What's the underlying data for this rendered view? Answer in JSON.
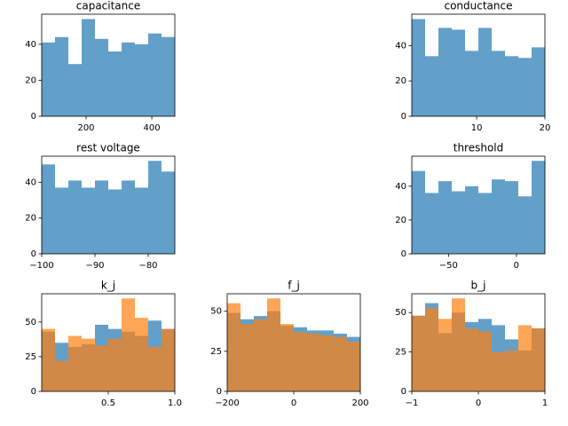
{
  "chart_data": [
    {
      "type": "histogram",
      "title": "capacitance",
      "bins": [
        65,
        105.5,
        146,
        186.5,
        227,
        267.5,
        308,
        348.5,
        389,
        429.5,
        470
      ],
      "values": [
        41,
        44,
        29,
        54,
        43,
        36,
        41,
        40,
        46,
        44
      ],
      "color": "#1f77b4",
      "alpha": 0.7,
      "xlim": [
        65,
        470
      ],
      "xticks": [
        200,
        400
      ],
      "ylim": [
        0,
        56.7
      ],
      "yticks": [
        0,
        20,
        40
      ]
    },
    {
      "type": "histogram",
      "title": "conductance",
      "bins": [
        0.5,
        2.45,
        4.4,
        6.35,
        8.3,
        10.25,
        12.2,
        14.15,
        16.1,
        18.05,
        20
      ],
      "values": [
        55,
        34,
        50,
        49,
        37,
        50,
        37,
        34,
        33,
        39
      ],
      "color": "#1f77b4",
      "alpha": 0.7,
      "xlim": [
        0.5,
        20
      ],
      "xticks": [
        10,
        20
      ],
      "ylim": [
        0,
        57.75
      ],
      "yticks": [
        0,
        20,
        40
      ]
    },
    {
      "type": "histogram",
      "title": "rest voltage",
      "bins": [
        -100,
        -97.5,
        -95,
        -92.5,
        -90,
        -87.5,
        -85,
        -82.5,
        -80,
        -77.5,
        -75
      ],
      "values": [
        50,
        37,
        41,
        37,
        41,
        36,
        41,
        37,
        52,
        46
      ],
      "color": "#1f77b4",
      "alpha": 0.7,
      "xlim": [
        -100,
        -75
      ],
      "xticks": [
        {
          "value": -100,
          "label": "−100"
        },
        {
          "value": -90,
          "label": "−90"
        },
        {
          "value": -80,
          "label": "−80"
        }
      ],
      "ylim": [
        0,
        54.6
      ],
      "yticks": [
        0,
        20,
        40
      ]
    },
    {
      "type": "histogram",
      "title": "threshold",
      "bins": [
        -77,
        -67.2,
        -57.4,
        -47.6,
        -37.8,
        -28,
        -18.2,
        -8.4,
        1.4,
        11.2,
        21
      ],
      "values": [
        49,
        36,
        43,
        37,
        40,
        36,
        44,
        43,
        34,
        55
      ],
      "color": "#1f77b4",
      "alpha": 0.7,
      "xlim": [
        -77,
        21
      ],
      "xticks": [
        {
          "value": -50,
          "label": "−50"
        },
        0
      ],
      "ylim": [
        0,
        57.75
      ],
      "yticks": [
        0,
        20,
        40
      ]
    },
    {
      "type": "histogram",
      "title": "k_j",
      "bins": [
        0,
        0.1,
        0.2,
        0.3,
        0.4,
        0.5,
        0.6,
        0.7,
        0.8,
        0.9,
        1
      ],
      "series": [
        {
          "color": "#1f77b4",
          "values": [
            43,
            35,
            32,
            34,
            48,
            45,
            43,
            40,
            51,
            45
          ]
        },
        {
          "color": "#ff7f0e",
          "values": [
            45,
            22,
            40,
            38,
            33,
            38,
            67,
            53,
            32,
            45
          ]
        }
      ],
      "alpha": 0.7,
      "xlim": [
        0,
        1
      ],
      "xticks": [
        0.5,
        {
          "value": 1,
          "label": "1.0"
        }
      ],
      "ylim": [
        0,
        70.35
      ],
      "yticks": [
        0,
        25,
        50
      ]
    },
    {
      "type": "histogram",
      "title": "f_j",
      "bins": [
        -200,
        -160,
        -120,
        -80,
        -40,
        0,
        40,
        80,
        120,
        160,
        200
      ],
      "series": [
        {
          "color": "#1f77b4",
          "values": [
            49,
            45,
            47,
            50,
            41,
            40,
            38,
            38,
            36,
            34
          ]
        },
        {
          "color": "#ff7f0e",
          "values": [
            55,
            42,
            45,
            58,
            42,
            37,
            36,
            35,
            34,
            31
          ]
        }
      ],
      "alpha": 0.7,
      "xlim": [
        -200,
        200
      ],
      "xticks": [
        {
          "value": -200,
          "label": "−200"
        },
        0,
        200
      ],
      "ylim": [
        0,
        60.9
      ],
      "yticks": [
        0,
        25,
        50
      ]
    },
    {
      "type": "histogram",
      "title": "b_j",
      "bins": [
        -1,
        -0.8,
        -0.6,
        -0.4,
        -0.2,
        0,
        0.2,
        0.4,
        0.6,
        0.8,
        1
      ],
      "series": [
        {
          "color": "#1f77b4",
          "values": [
            48,
            56,
            37,
            50,
            44,
            46,
            42,
            33,
            26,
            40
          ]
        },
        {
          "color": "#ff7f0e",
          "values": [
            48,
            53,
            46,
            59,
            40,
            38,
            25,
            26,
            42,
            40
          ]
        }
      ],
      "alpha": 0.7,
      "xlim": [
        -1,
        1
      ],
      "xticks": [
        {
          "value": -1,
          "label": "−1"
        },
        0,
        1
      ],
      "ylim": [
        0,
        61.95
      ],
      "yticks": [
        0,
        25,
        50
      ]
    }
  ]
}
